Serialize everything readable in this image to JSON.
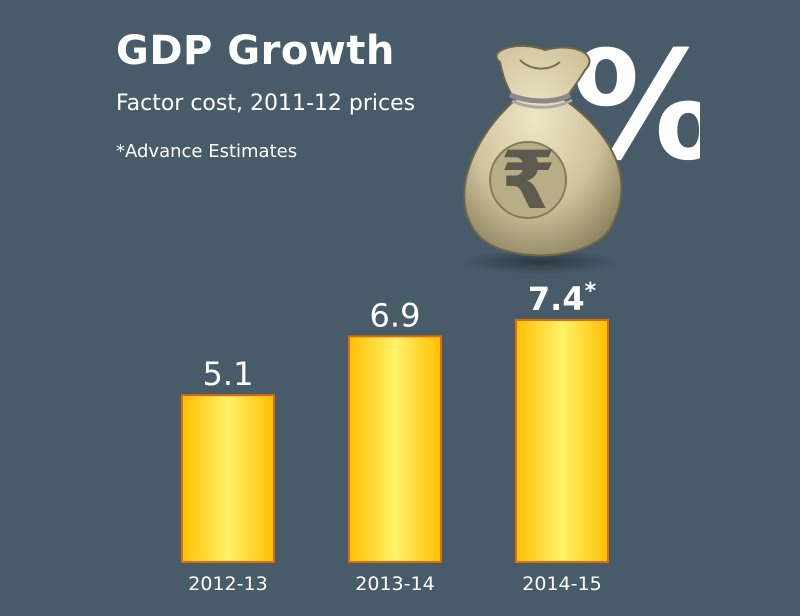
{
  "header": {
    "title": "GDP Growth",
    "subtitle": "Factor cost, 2011-12 prices",
    "note": "*Advance Estimates"
  },
  "illustration": {
    "icons": [
      "money-bag-icon",
      "rupee-icon",
      "percent-icon"
    ],
    "percent_symbol": "%",
    "rupee_symbol": "₹"
  },
  "colors": {
    "background": "#485b69",
    "bar_fill_light": "#fff36a",
    "bar_fill_dark": "#ffbf00",
    "bar_border": "#e06a10",
    "text": "#ffffff"
  },
  "chart_data": {
    "type": "bar",
    "categories": [
      "2012-13",
      "2013-14",
      "2014-15"
    ],
    "values": [
      5.1,
      6.9,
      7.4
    ],
    "value_labels": [
      "5.1",
      "6.9",
      "7.4"
    ],
    "value_marks": [
      "",
      "",
      "*"
    ],
    "highlighted": [
      false,
      false,
      true
    ],
    "ylim": [
      0,
      7.4
    ],
    "grid": false,
    "legend": "none"
  }
}
